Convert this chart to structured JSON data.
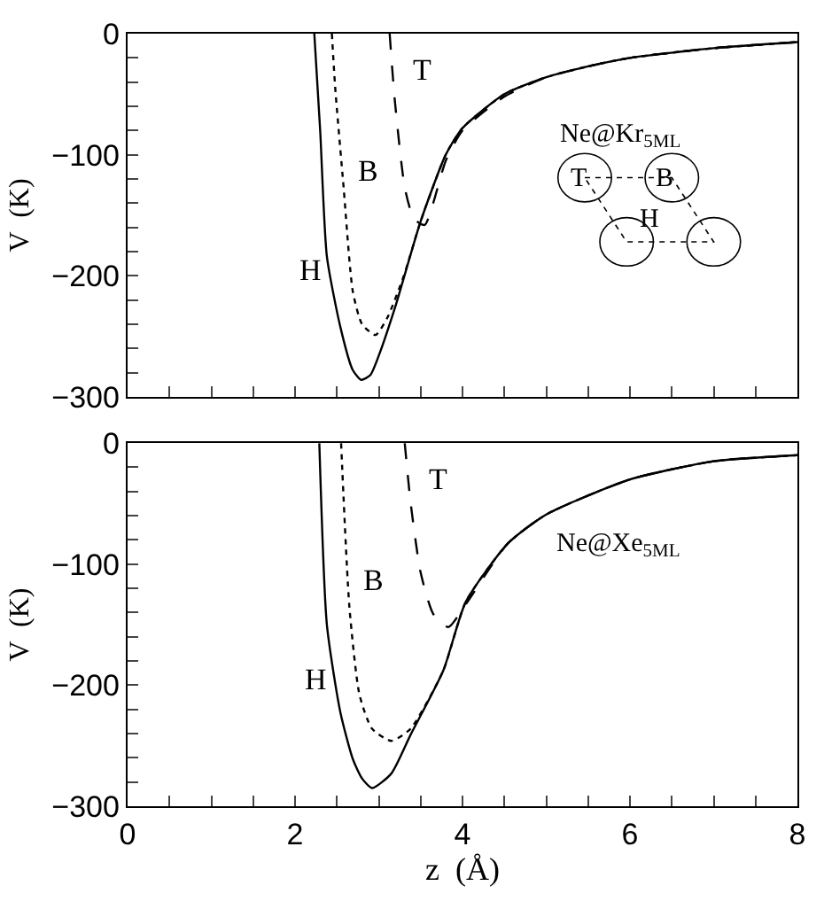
{
  "chart_data": [
    {
      "type": "line",
      "ylabel": "V  (K)",
      "xlim": [
        0,
        8
      ],
      "ylim": [
        -300,
        0
      ],
      "tick_labels": "y",
      "xticks": [
        0,
        {
          "value": 0.5,
          "label": null
        },
        {
          "value": 1,
          "label": null
        },
        {
          "value": 1.5,
          "label": null
        },
        2,
        {
          "value": 2.5,
          "label": null
        },
        {
          "value": 3,
          "label": null
        },
        {
          "value": 3.5,
          "label": null
        },
        4,
        {
          "value": 4.5,
          "label": null
        },
        {
          "value": 5,
          "label": null
        },
        {
          "value": 5.5,
          "label": null
        },
        6,
        {
          "value": 6.5,
          "label": null
        },
        {
          "value": 7,
          "label": null
        },
        {
          "value": 7.5,
          "label": null
        },
        8
      ],
      "yticks": [
        {
          "value": -300,
          "label": "−300"
        },
        {
          "value": -280,
          "label": null
        },
        {
          "value": -260,
          "label": null
        },
        {
          "value": -240,
          "label": null
        },
        {
          "value": -220,
          "label": null
        },
        {
          "value": -200,
          "label": "−200"
        },
        {
          "value": -180,
          "label": null
        },
        {
          "value": -160,
          "label": null
        },
        {
          "value": -140,
          "label": null
        },
        {
          "value": -120,
          "label": null
        },
        {
          "value": -100,
          "label": "−100"
        },
        {
          "value": -80,
          "label": null
        },
        {
          "value": -60,
          "label": null
        },
        {
          "value": -40,
          "label": null
        },
        {
          "value": -20,
          "label": null
        },
        0
      ],
      "series": [
        {
          "name": "H",
          "color": "#000000",
          "line_style": "solid",
          "x": [
            2.23,
            2.3,
            2.38,
            2.54,
            2.69,
            2.79,
            2.9,
            3.0,
            3.2,
            3.5,
            3.8,
            4.0,
            4.5,
            5.0,
            5.5,
            6.0,
            7.0,
            8.0
          ],
          "values": [
            0,
            -80,
            -184,
            -242,
            -278,
            -286,
            -282,
            -266,
            -225,
            -155,
            -100,
            -78,
            -50,
            -36,
            -27,
            -20,
            -12,
            -7
          ]
        },
        {
          "name": "B",
          "color": "#000000",
          "line_style": "dotted",
          "x": [
            2.44,
            2.48,
            2.58,
            2.69,
            2.8,
            2.96,
            3.1,
            3.3,
            3.5,
            3.8,
            4.0,
            4.5,
            5.0,
            5.5,
            6.0,
            7.0,
            8.0
          ],
          "values": [
            0,
            -45,
            -127,
            -213,
            -240,
            -249,
            -235,
            -200,
            -155,
            -100,
            -78,
            -50,
            -36,
            -27,
            -20,
            -12,
            -7
          ]
        },
        {
          "name": "T",
          "color": "#000000",
          "line_style": "dashed",
          "x": [
            3.13,
            3.19,
            3.31,
            3.42,
            3.55,
            3.65,
            3.8,
            4.0,
            4.5,
            5.0,
            5.5,
            6.0,
            7.0,
            8.0
          ],
          "values": [
            0,
            -54,
            -127,
            -153,
            -158,
            -140,
            -105,
            -80,
            -52,
            -36,
            -27,
            -20,
            -12,
            -7
          ]
        }
      ],
      "annotations": [
        "Ne@Kr$_{5ML}$",
        "T",
        "B",
        "H"
      ]
    },
    {
      "type": "line",
      "xlabel": "z  (Å)",
      "ylabel": "V  (K)",
      "xlim": [
        0,
        8
      ],
      "ylim": [
        -300,
        0
      ],
      "xticks": [
        0,
        {
          "value": 0.5,
          "label": null
        },
        {
          "value": 1,
          "label": null
        },
        {
          "value": 1.5,
          "label": null
        },
        2,
        {
          "value": 2.5,
          "label": null
        },
        {
          "value": 3,
          "label": null
        },
        {
          "value": 3.5,
          "label": null
        },
        4,
        {
          "value": 4.5,
          "label": null
        },
        {
          "value": 5,
          "label": null
        },
        {
          "value": 5.5,
          "label": null
        },
        6,
        {
          "value": 6.5,
          "label": null
        },
        {
          "value": 7,
          "label": null
        },
        {
          "value": 7.5,
          "label": null
        },
        8
      ],
      "yticks": [
        {
          "value": -300,
          "label": "−300"
        },
        {
          "value": -280,
          "label": null
        },
        {
          "value": -260,
          "label": null
        },
        {
          "value": -240,
          "label": null
        },
        {
          "value": -220,
          "label": null
        },
        {
          "value": -200,
          "label": "−200"
        },
        {
          "value": -180,
          "label": null
        },
        {
          "value": -160,
          "label": null
        },
        {
          "value": -140,
          "label": null
        },
        {
          "value": -120,
          "label": null
        },
        {
          "value": -100,
          "label": "−100"
        },
        {
          "value": -80,
          "label": null
        },
        {
          "value": -60,
          "label": null
        },
        {
          "value": -40,
          "label": null
        },
        {
          "value": -20,
          "label": null
        },
        0
      ],
      "series": [
        {
          "name": "H",
          "color": "#000000",
          "line_style": "solid",
          "x": [
            2.29,
            2.38,
            2.54,
            2.69,
            2.8,
            2.92,
            3.15,
            3.38,
            3.77,
            4.04,
            4.54,
            5.0,
            6.0,
            7.0,
            8.0
          ],
          "values": [
            0,
            -150,
            -222,
            -261,
            -277,
            -285,
            -273,
            -241,
            -188,
            -131,
            -83,
            -59,
            -30,
            -15,
            -10
          ]
        },
        {
          "name": "B",
          "color": "#000000",
          "line_style": "dotted",
          "x": [
            2.55,
            2.65,
            2.77,
            2.92,
            3.15,
            3.38,
            3.77,
            4.04,
            4.54,
            5.0,
            6.0,
            7.0,
            8.0
          ],
          "values": [
            0,
            -136,
            -208,
            -236,
            -246,
            -236,
            -188,
            -131,
            -83,
            -59,
            -30,
            -15,
            -10
          ]
        },
        {
          "name": "T",
          "color": "#000000",
          "line_style": "dashed",
          "x": [
            3.31,
            3.38,
            3.5,
            3.65,
            3.83,
            4.04,
            4.54,
            5.0,
            6.0,
            7.0,
            8.0
          ],
          "values": [
            0,
            -49,
            -107,
            -141,
            -152,
            -133,
            -83,
            -59,
            -30,
            -15,
            -10
          ]
        }
      ],
      "annotations": [
        "Ne@Xe$_{5ML}$"
      ]
    }
  ]
}
